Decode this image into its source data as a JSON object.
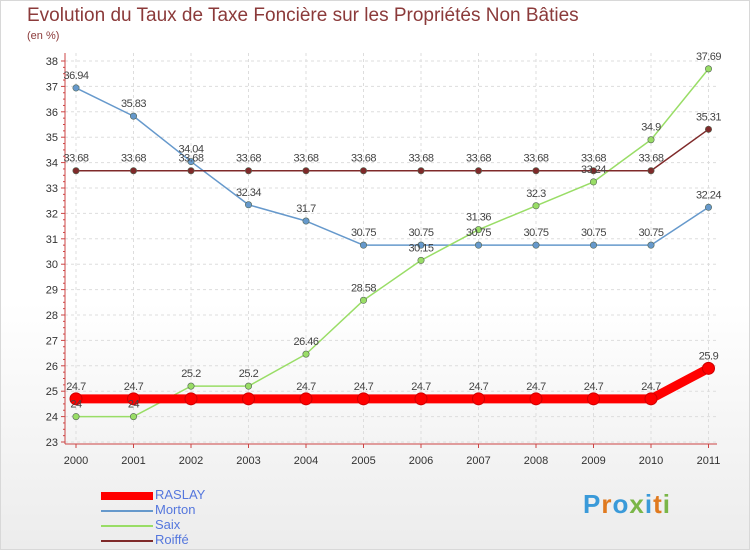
{
  "title": "Evolution du Taux de Taxe Foncière sur les Propriétés Non Bâties",
  "subtitle": "(en %)",
  "logo": {
    "text": "Proxiti",
    "colors": [
      "#3a9ad9",
      "#e07a1f",
      "#3a9ad9",
      "#7ab648",
      "#3a9ad9",
      "#e07a1f",
      "#7ab648"
    ]
  },
  "chart_data": {
    "type": "line",
    "title": "Evolution du Taux de Taxe Foncière sur les Propriétés Non Bâties",
    "ylabel": "(en %)",
    "xlabel": "",
    "ylim": [
      23,
      38
    ],
    "yticks": [
      "23",
      "24",
      "25",
      "26",
      "27",
      "28",
      "29",
      "30",
      "31",
      "32",
      "33",
      "34",
      "35",
      "36",
      "37",
      "38"
    ],
    "categories": [
      "2000",
      "2001",
      "2002",
      "2003",
      "2004",
      "2005",
      "2006",
      "2007",
      "2008",
      "2009",
      "2010",
      "2011"
    ],
    "series": [
      {
        "name": "RASLAY",
        "color": "#ff0000",
        "thick": true,
        "values": [
          24.7,
          24.7,
          24.7,
          24.7,
          24.7,
          24.7,
          24.7,
          24.7,
          24.7,
          24.7,
          24.7,
          25.9
        ],
        "labels": [
          "24.7",
          "24.7",
          "",
          "",
          "24.7",
          "24.7",
          "24.7",
          "24.7",
          "24.7",
          "24.7",
          "24.7",
          "25.9"
        ]
      },
      {
        "name": "Morton",
        "color": "#6699cc",
        "thick": false,
        "values": [
          36.94,
          35.83,
          34.04,
          32.34,
          31.7,
          30.75,
          30.75,
          30.75,
          30.75,
          30.75,
          30.75,
          32.24
        ],
        "labels": [
          "36.94",
          "35.83",
          "34.04",
          "32.34",
          "31.7",
          "30.75",
          "30.75",
          "30.75",
          "30.75",
          "30.75",
          "30.75",
          "32.24"
        ]
      },
      {
        "name": "Saix",
        "color": "#99dd66",
        "thick": false,
        "values": [
          24,
          24,
          25.2,
          25.2,
          26.46,
          28.58,
          30.15,
          31.36,
          32.3,
          33.24,
          34.9,
          37.69
        ],
        "labels": [
          "24",
          "24",
          "25.2",
          "25.2",
          "26.46",
          "28.58",
          "30.15",
          "31.36",
          "32.3",
          "33.24",
          "34.9",
          "37.69"
        ]
      },
      {
        "name": "Roiffé",
        "color": "#7f2a2a",
        "thick": false,
        "values": [
          33.68,
          33.68,
          33.68,
          33.68,
          33.68,
          33.68,
          33.68,
          33.68,
          33.68,
          33.68,
          33.68,
          35.31
        ],
        "labels": [
          "33.68",
          "33.68",
          "33.68",
          "33.68",
          "33.68",
          "33.68",
          "33.68",
          "33.68",
          "33.68",
          "33.68",
          "33.68",
          "35.31"
        ]
      }
    ]
  }
}
